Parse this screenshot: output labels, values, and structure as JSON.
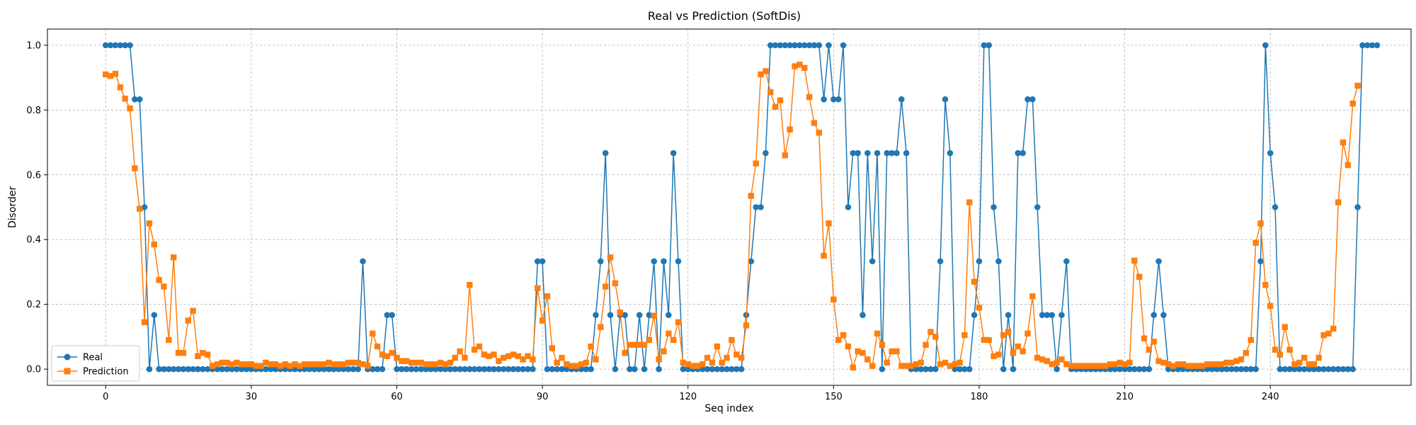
{
  "chart_data": {
    "type": "line",
    "title": "Real vs Prediction (SoftDis)",
    "xlabel": "Seq index",
    "ylabel": "Disorder",
    "xlim": [
      -12,
      269
    ],
    "ylim": [
      -0.05,
      1.05
    ],
    "xticks": [
      0,
      30,
      60,
      90,
      120,
      150,
      180,
      210,
      240
    ],
    "yticks": [
      0.0,
      0.2,
      0.4,
      0.6,
      0.8,
      1.0
    ],
    "ytick_labels": [
      "0.0",
      "0.2",
      "0.4",
      "0.6",
      "0.8",
      "1.0"
    ],
    "grid": true,
    "legend_position": "lower-left",
    "colors": {
      "real": "#1f77b4",
      "prediction": "#ff7f0e"
    },
    "series": [
      {
        "name": "Real",
        "marker": "circle",
        "values": [
          1,
          1,
          1,
          1,
          1,
          1,
          0.833,
          0.833,
          0.5,
          0,
          0.167,
          0,
          0,
          0,
          0,
          0,
          0,
          0,
          0,
          0,
          0,
          0,
          0,
          0,
          0,
          0,
          0,
          0,
          0,
          0,
          0,
          0,
          0,
          0,
          0,
          0,
          0,
          0,
          0,
          0,
          0,
          0,
          0,
          0,
          0,
          0,
          0,
          0,
          0,
          0,
          0,
          0,
          0,
          0.333,
          0,
          0,
          0,
          0,
          0.167,
          0.167,
          0,
          0,
          0,
          0,
          0,
          0,
          0,
          0,
          0,
          0,
          0,
          0,
          0,
          0,
          0,
          0,
          0,
          0,
          0,
          0,
          0,
          0,
          0,
          0,
          0,
          0,
          0,
          0,
          0,
          0.333,
          0.333,
          0,
          0,
          0,
          0,
          0,
          0,
          0,
          0,
          0,
          0,
          0.167,
          0.333,
          0.667,
          0.167,
          0,
          0.167,
          0.167,
          0,
          0,
          0.167,
          0,
          0.167,
          0.333,
          0,
          0.333,
          0.167,
          0.667,
          0.333,
          0,
          0,
          0,
          0,
          0,
          0,
          0,
          0,
          0,
          0,
          0,
          0,
          0,
          0.167,
          0.333,
          0.5,
          0.5,
          0.667,
          1,
          1,
          1,
          1,
          1,
          1,
          1,
          1,
          1,
          1,
          1,
          0.833,
          1,
          0.833,
          0.833,
          1,
          0.5,
          0.667,
          0.667,
          0.167,
          0.667,
          0.333,
          0.667,
          0,
          0.667,
          0.667,
          0.667,
          0.833,
          0.667,
          0,
          0,
          0,
          0,
          0,
          0,
          0.333,
          0.833,
          0.667,
          0,
          0,
          0,
          0,
          0.167,
          0.333,
          1,
          1,
          0.5,
          0.333,
          0,
          0.167,
          0,
          0.667,
          0.667,
          0.833,
          0.833,
          0.5,
          0.167,
          0.167,
          0.167,
          0,
          0.167,
          0.333,
          0,
          0,
          0,
          0,
          0,
          0,
          0,
          0,
          0,
          0,
          0,
          0,
          0,
          0,
          0,
          0,
          0,
          0.167,
          0.333,
          0.167,
          0,
          0,
          0,
          0,
          0,
          0,
          0,
          0,
          0,
          0,
          0,
          0,
          0,
          0,
          0,
          0,
          0,
          0,
          0,
          0.333,
          1,
          0.667,
          0.5,
          0,
          0,
          0,
          0,
          0,
          0,
          0,
          0,
          0,
          0,
          0,
          0,
          0,
          0,
          0,
          0,
          0.5,
          1,
          1,
          1,
          1
        ]
      },
      {
        "name": "Prediction",
        "marker": "square",
        "values": [
          0.91,
          0.905,
          0.912,
          0.87,
          0.835,
          0.805,
          0.62,
          0.495,
          0.145,
          0.45,
          0.385,
          0.275,
          0.255,
          0.09,
          0.345,
          0.05,
          0.05,
          0.15,
          0.18,
          0.04,
          0.05,
          0.045,
          0.01,
          0.015,
          0.02,
          0.02,
          0.015,
          0.02,
          0.015,
          0.015,
          0.015,
          0.01,
          0.01,
          0.02,
          0.015,
          0.015,
          0.01,
          0.015,
          0.01,
          0.015,
          0.01,
          0.015,
          0.015,
          0.015,
          0.015,
          0.015,
          0.02,
          0.015,
          0.015,
          0.015,
          0.02,
          0.02,
          0.02,
          0.015,
          0.01,
          0.11,
          0.07,
          0.045,
          0.04,
          0.05,
          0.035,
          0.025,
          0.025,
          0.02,
          0.02,
          0.02,
          0.015,
          0.015,
          0.015,
          0.02,
          0.015,
          0.02,
          0.035,
          0.055,
          0.035,
          0.26,
          0.06,
          0.07,
          0.045,
          0.04,
          0.045,
          0.025,
          0.035,
          0.04,
          0.045,
          0.04,
          0.03,
          0.04,
          0.03,
          0.25,
          0.15,
          0.225,
          0.065,
          0.02,
          0.035,
          0.015,
          0.01,
          0.01,
          0.015,
          0.02,
          0.07,
          0.03,
          0.13,
          0.255,
          0.345,
          0.265,
          0.175,
          0.05,
          0.075,
          0.075,
          0.075,
          0.075,
          0.09,
          0.165,
          0.03,
          0.055,
          0.11,
          0.09,
          0.145,
          0.02,
          0.015,
          0.01,
          0.01,
          0.015,
          0.035,
          0.02,
          0.07,
          0.02,
          0.035,
          0.09,
          0.045,
          0.035,
          0.135,
          0.535,
          0.635,
          0.91,
          0.92,
          0.855,
          0.81,
          0.83,
          0.66,
          0.74,
          0.935,
          0.94,
          0.93,
          0.84,
          0.76,
          0.73,
          0.35,
          0.45,
          0.215,
          0.09,
          0.105,
          0.07,
          0.005,
          0.055,
          0.05,
          0.03,
          0.01,
          0.11,
          0.075,
          0.02,
          0.055,
          0.055,
          0.01,
          0.01,
          0.01,
          0.015,
          0.02,
          0.075,
          0.115,
          0.1,
          0.015,
          0.02,
          0.01,
          0.015,
          0.02,
          0.105,
          0.515,
          0.27,
          0.19,
          0.09,
          0.09,
          0.04,
          0.045,
          0.105,
          0.115,
          0.05,
          0.07,
          0.055,
          0.11,
          0.225,
          0.035,
          0.03,
          0.025,
          0.015,
          0.02,
          0.03,
          0.015,
          0.01,
          0.01,
          0.01,
          0.01,
          0.01,
          0.01,
          0.01,
          0.01,
          0.015,
          0.015,
          0.02,
          0.015,
          0.02,
          0.335,
          0.285,
          0.095,
          0.06,
          0.085,
          0.025,
          0.02,
          0.015,
          0.01,
          0.015,
          0.015,
          0.01,
          0.01,
          0.01,
          0.01,
          0.015,
          0.015,
          0.015,
          0.015,
          0.02,
          0.02,
          0.025,
          0.03,
          0.05,
          0.09,
          0.39,
          0.45,
          0.26,
          0.195,
          0.06,
          0.045,
          0.13,
          0.06,
          0.015,
          0.02,
          0.035,
          0.015,
          0.015,
          0.035,
          0.105,
          0.11,
          0.125,
          0.515,
          0.7,
          0.63,
          0.82,
          0.875
        ]
      }
    ]
  }
}
